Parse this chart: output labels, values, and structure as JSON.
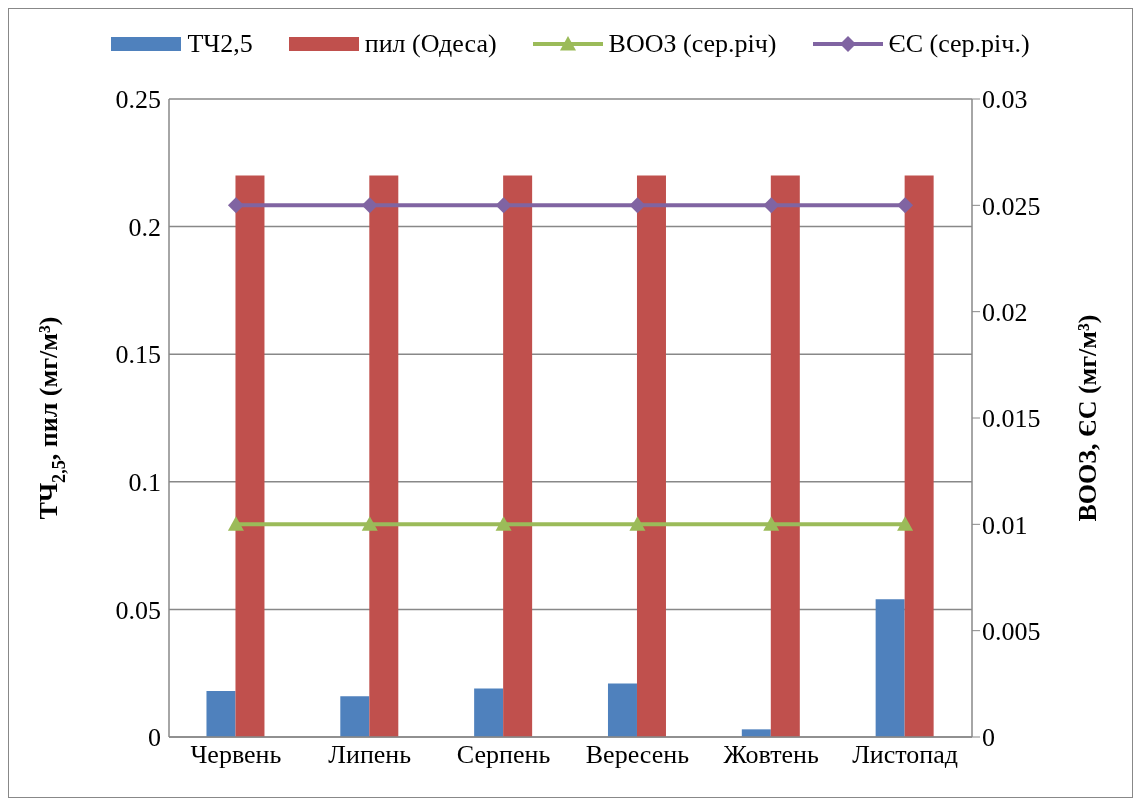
{
  "chart_data": {
    "type": "bar",
    "categories": [
      "Червень",
      "Липень",
      "Серпень",
      "Вересень",
      "Жовтень",
      "Листопад"
    ],
    "ylabel": "ТЧ$_{2,5}$, пил (мг/м³)",
    "y2label": "ВООЗ, ЄС (мг/м³)",
    "ylim": [
      0,
      0.25
    ],
    "yticks": [
      0,
      0.05,
      0.1,
      0.15,
      0.2,
      0.25
    ],
    "y2lim": [
      0,
      0.03
    ],
    "y2ticks": [
      0,
      0.005,
      0.01,
      0.015,
      0.02,
      0.025,
      0.03
    ],
    "grid": "y",
    "legend": "top",
    "series": [
      {
        "name": "ТЧ2,5",
        "color": "#4f81bd",
        "values": [
          0.018,
          0.016,
          0.019,
          0.021,
          0.003,
          0.054
        ]
      },
      {
        "name": "пил (Одеса)",
        "color": "#c0504d",
        "values": [
          0.22,
          0.22,
          0.22,
          0.22,
          0.22,
          0.22
        ]
      },
      {
        "name": "ВООЗ (сер.річ)",
        "type": "line",
        "axis": "y2",
        "marker": "triangle",
        "color": "#9bbb59",
        "values": [
          0.01,
          0.01,
          0.01,
          0.01,
          0.01,
          0.01
        ]
      },
      {
        "name": "ЄС (сер.річ.)",
        "type": "line",
        "axis": "y2",
        "marker": "diamond",
        "color": "#8064a2",
        "values": [
          0.025,
          0.025,
          0.025,
          0.025,
          0.025,
          0.025
        ]
      }
    ]
  }
}
